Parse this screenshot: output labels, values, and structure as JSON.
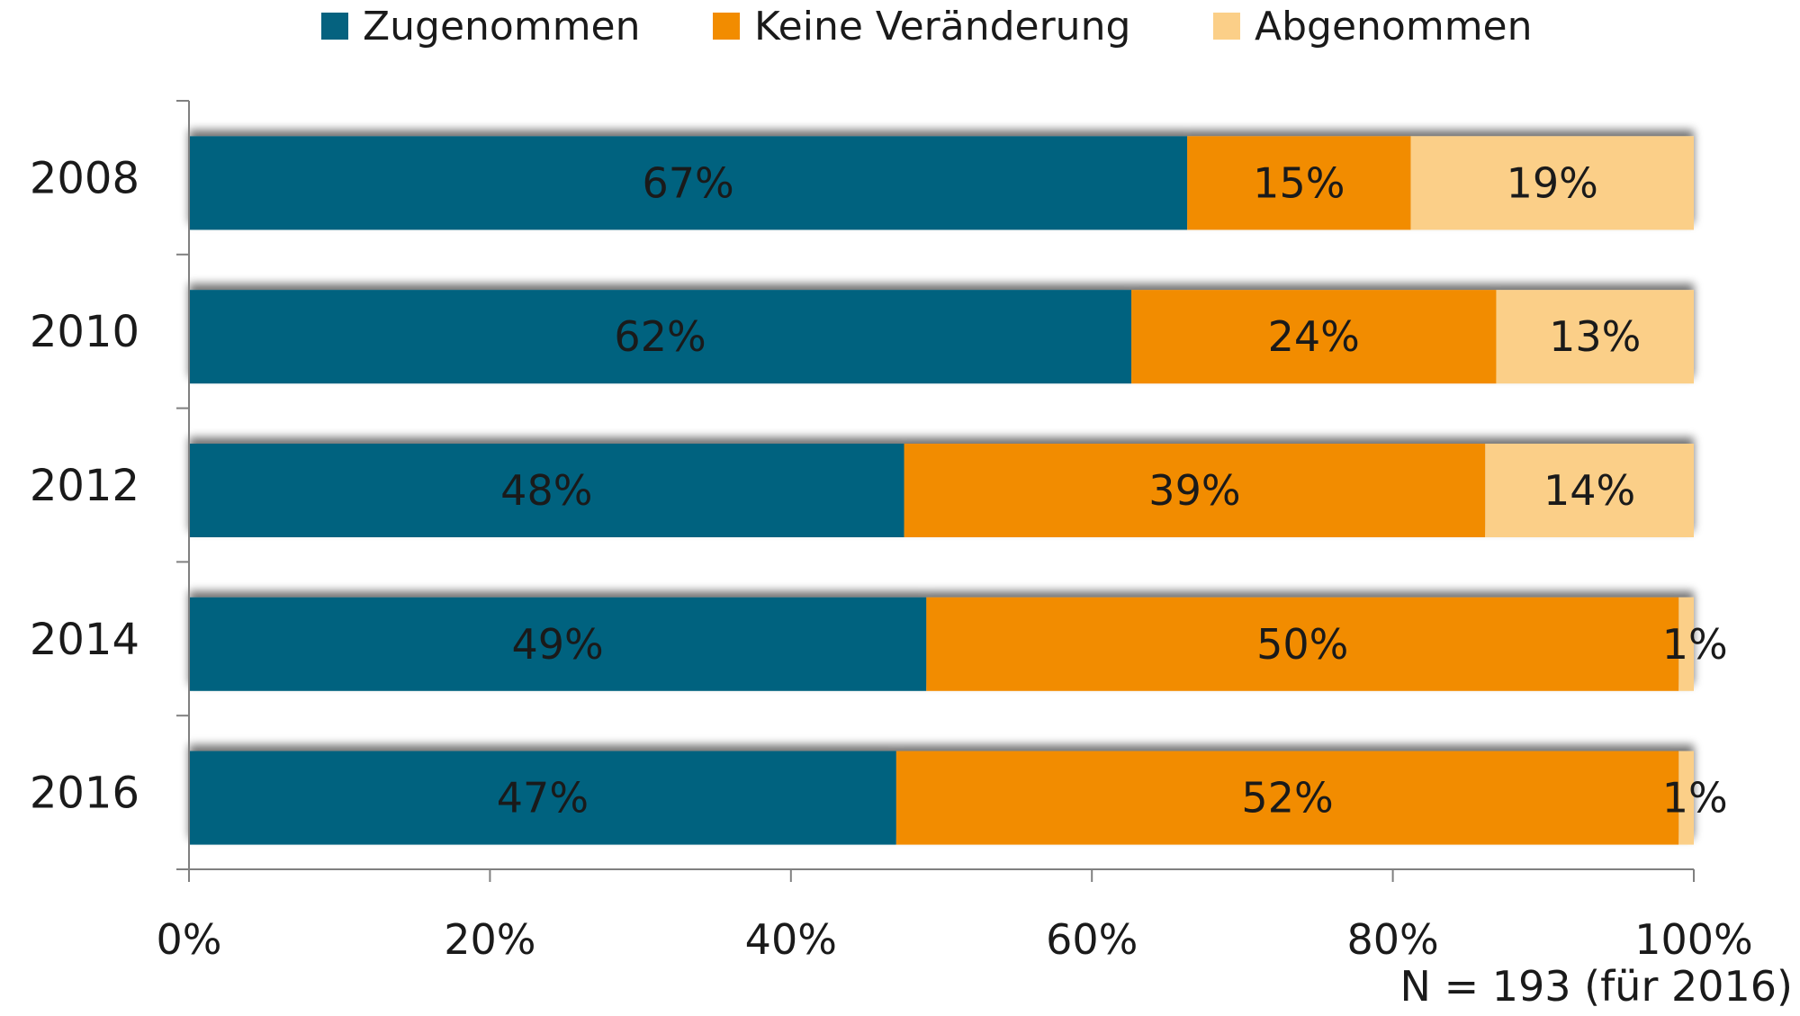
{
  "chart_data": {
    "type": "bar",
    "orientation": "horizontal",
    "stacked": true,
    "percent_stacked": true,
    "categories": [
      "2008",
      "2010",
      "2012",
      "2014",
      "2016"
    ],
    "series": [
      {
        "name": "Zugenommen",
        "values": [
          67,
          62,
          48,
          49,
          47
        ],
        "labels": [
          "67%",
          "62%",
          "48%",
          "49%",
          "47%"
        ],
        "color": "#05627f"
      },
      {
        "name": "Keine Veränderung",
        "values": [
          15,
          24,
          39,
          50,
          52
        ],
        "labels": [
          "15%",
          "24%",
          "39%",
          "50%",
          "52%"
        ],
        "color": "#f28c00"
      },
      {
        "name": "Abgenommen",
        "values": [
          19,
          13,
          14,
          1,
          1
        ],
        "labels": [
          "19%",
          "13%",
          "14%",
          "1%",
          "1%"
        ],
        "color": "#fbcf88"
      }
    ],
    "xlim": [
      0,
      100
    ],
    "xticks": [
      0,
      20,
      40,
      60,
      80,
      100
    ],
    "xtick_labels": [
      "0%",
      "20%",
      "40%",
      "60%",
      "80%",
      "100%"
    ],
    "legend_position": "top",
    "grid": false,
    "annotation": "N = 193 (für 2016)"
  },
  "colors": {
    "axis": "#808080",
    "text": "#1a1a1a",
    "shadow": "#9a9a9a"
  }
}
